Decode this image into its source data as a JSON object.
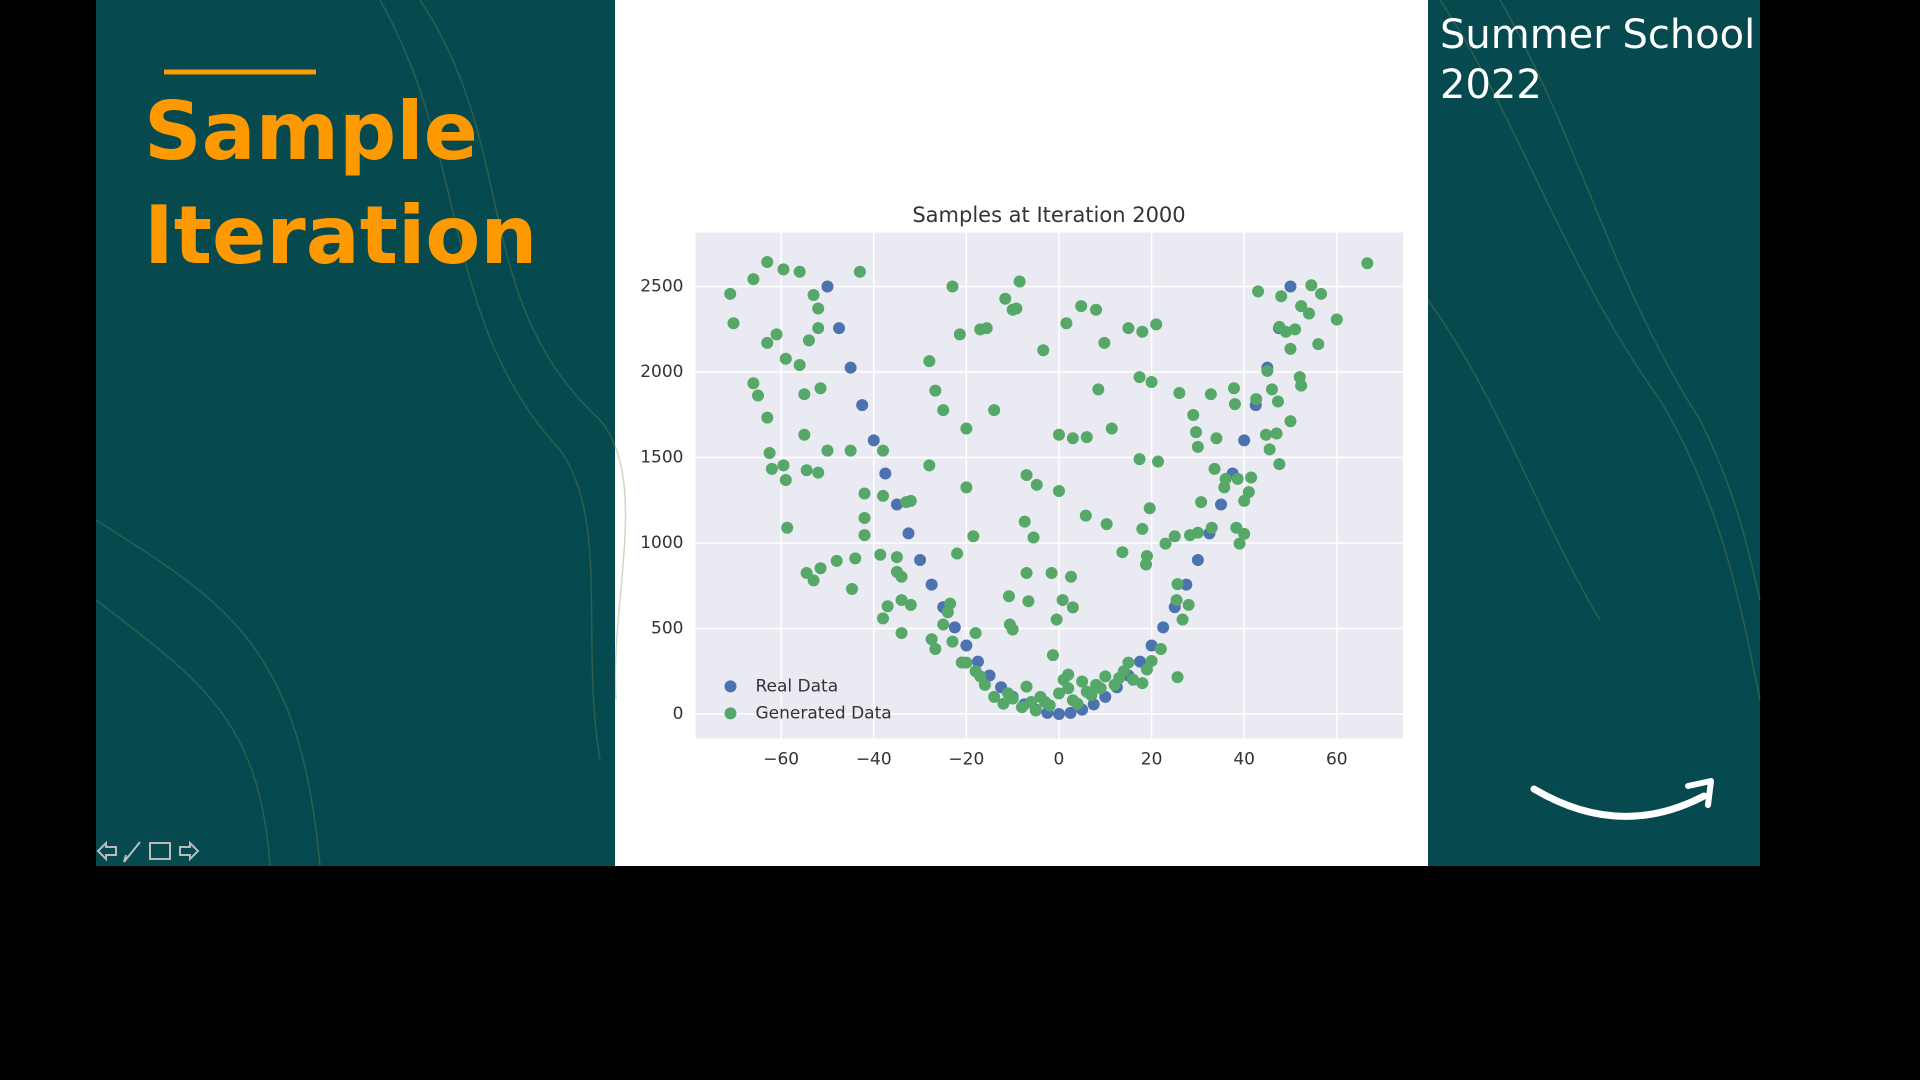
{
  "slide": {
    "title_lines": [
      "Sample",
      "Iteration"
    ],
    "event_lines": [
      "Summer School",
      "2022"
    ]
  },
  "chart_data": {
    "type": "scatter",
    "title": "Samples at Iteration 2000",
    "xlim": [
      -78.5,
      74.3
    ],
    "ylim": [
      -143,
      2815
    ],
    "xticks": [
      {
        "value": -60,
        "label": "−60"
      },
      {
        "value": -40,
        "label": "−40"
      },
      {
        "value": -20,
        "label": "−20"
      },
      0,
      20,
      40,
      60
    ],
    "yticks": [
      0,
      500,
      1000,
      1500,
      2000,
      2500
    ],
    "grid": true,
    "legend": "lower left",
    "series": [
      {
        "name": "Real Data",
        "color": "#4c72b0",
        "x": [
          -50,
          -47.5,
          -45,
          -42.5,
          -40,
          -37.5,
          -35,
          -32.5,
          -30,
          -27.5,
          -25,
          -22.5,
          -20,
          -17.5,
          -15,
          -12.5,
          -10,
          -7.5,
          -5,
          -2.5,
          0,
          2.5,
          5,
          7.5,
          10,
          12.5,
          15,
          17.5,
          20,
          22.5,
          25,
          27.5,
          30,
          32.5,
          35,
          37.5,
          40,
          42.5,
          45,
          47.5,
          50
        ],
        "values": [
          2500,
          2256,
          2025,
          1806,
          1600,
          1406,
          1225,
          1056,
          900,
          756,
          625,
          506,
          400,
          306,
          225,
          156,
          100,
          56,
          25,
          6,
          0,
          6,
          25,
          56,
          100,
          156,
          225,
          306,
          400,
          506,
          625,
          756,
          900,
          1056,
          1225,
          1406,
          1600,
          1806,
          2025,
          2256,
          2500
        ]
      },
      {
        "name": "Generated Data",
        "color": "#55a868",
        "x": [
          -71,
          -70.3,
          -66,
          -65,
          -63,
          -63,
          -66,
          -59.5,
          -56,
          -61,
          -63,
          -59,
          -56,
          -53,
          -52,
          -52,
          -54,
          -51.5,
          -55,
          -55,
          -62.5,
          -62,
          -59,
          -59.5,
          -54.5,
          -52,
          -50,
          -58.7,
          -54.5,
          -53,
          -51.5,
          -48,
          -44.7,
          -44,
          -42,
          -42,
          -42,
          -45,
          -43,
          -38,
          -38.6,
          -38,
          -35,
          -38,
          -37,
          -34,
          -34,
          -32,
          -33,
          -32,
          -35,
          -34,
          -28,
          -28,
          -26.7,
          -25,
          -23,
          -21.4,
          -20,
          -20,
          -18.5,
          -22,
          -23.5,
          -24,
          -23,
          -25,
          -27.5,
          -26.7,
          -21,
          -18,
          -14,
          -17,
          -15.6,
          -11.6,
          -10,
          -8.5,
          -9.2,
          -10.8,
          -10.6,
          -10,
          -7,
          -7,
          -6.6,
          -5.5,
          -4.8,
          -7.4,
          -3.4,
          -1.6,
          0,
          1.6,
          0,
          3,
          4.8,
          8,
          6,
          2.6,
          0.8,
          -0.5,
          3,
          -1.3,
          5.8,
          8.5,
          9.8,
          10.3,
          11.4,
          13.7,
          15,
          18,
          21,
          17.4,
          20,
          17.4,
          21.4,
          18.8,
          19,
          19.6,
          18,
          23,
          25,
          25.6,
          26,
          29,
          29.6,
          30,
          32.8,
          34,
          30,
          28.3,
          30.7,
          33,
          33.6,
          35.7,
          37.8,
          38,
          38.6,
          40,
          41,
          38.3,
          39,
          40,
          36,
          41.5,
          42.6,
          43,
          45,
          44.7,
          46,
          47,
          47.6,
          47.3,
          45.5,
          48,
          47.6,
          49,
          50,
          51,
          52,
          52.3,
          54.5,
          54,
          56.6,
          56,
          60,
          66.6,
          52.3,
          50,
          25.6,
          26.7,
          25.4,
          28,
          -14,
          -12,
          -10,
          -8,
          -6,
          -4,
          -2,
          0,
          1,
          2,
          3,
          5,
          6,
          8,
          10,
          12,
          14,
          16,
          18,
          19,
          20,
          22,
          -16,
          -18,
          -20,
          -17,
          -11,
          -7,
          -3,
          4,
          7,
          9,
          13,
          -5,
          2,
          15
        ],
        "values": [
          2457,
          2285,
          1934,
          1862,
          1733,
          2643,
          2543,
          2600,
          2586,
          2220,
          2170,
          2077,
          2041,
          2450,
          2371,
          2256,
          2185,
          1905,
          1870,
          1633,
          1526,
          1433,
          1368,
          1454,
          1425,
          1411,
          1540,
          1089,
          824,
          781,
          852,
          895,
          731,
          910,
          1146,
          1046,
          1289,
          1540,
          2586,
          1540,
          931,
          1275,
          917,
          559,
          630,
          666,
          473,
          638,
          1239,
          1246,
          831,
          802,
          1454,
          2063,
          1891,
          1777,
          2500,
          2220,
          1669,
          1325,
          1039,
          938,
          645,
          595,
          423,
          523,
          437,
          380,
          301,
          473,
          1777,
          2249,
          2256,
          2428,
          2364,
          2529,
          2371,
          688,
          523,
          494,
          1397,
          824,
          659,
          1032,
          1340,
          1125,
          2127,
          824,
          1304,
          2285,
          1633,
          1612,
          2385,
          2364,
          1619,
          802,
          666,
          552,
          623,
          344,
          1160,
          1898,
          2170,
          1110,
          1669,
          946,
          2256,
          2235,
          2278,
          1970,
          1941,
          1490,
          1476,
          874,
          924,
          1203,
          1082,
          996,
          1039,
          759,
          1877,
          1748,
          1648,
          1562,
          1870,
          1612,
          1060,
          1046,
          1239,
          1089,
          1433,
          1325,
          1905,
          1812,
          1375,
          1246,
          1297,
          1089,
          996,
          1053,
          1375,
          1383,
          1841,
          2471,
          2006,
          1633,
          1898,
          1640,
          1461,
          1827,
          1547,
          2443,
          2264,
          2235,
          2135,
          2249,
          1970,
          2385,
          2507,
          2342,
          2457,
          2163,
          2307,
          2636,
          1920,
          1712,
          215,
          552,
          666,
          638,
          100,
          60,
          90,
          40,
          70,
          100,
          50,
          120,
          200,
          150,
          80,
          190,
          130,
          170,
          220,
          170,
          250,
          200,
          180,
          260,
          310,
          380,
          170,
          250,
          300,
          220,
          120,
          160,
          70,
          60,
          110,
          150,
          210,
          20,
          230,
          300
        ]
      }
    ]
  }
}
